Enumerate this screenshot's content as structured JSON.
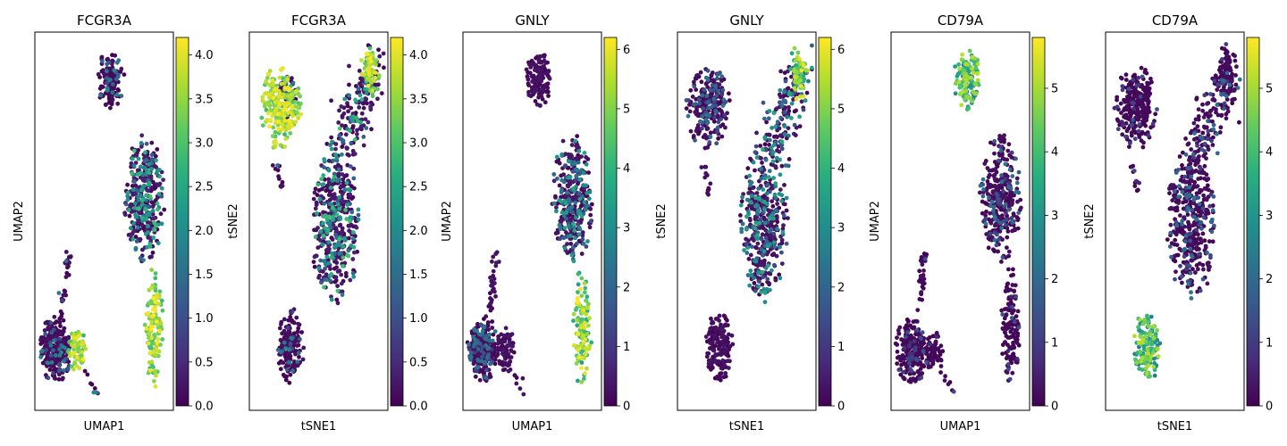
{
  "chart_data": [
    {
      "type": "scatter",
      "title": "FCGR3A",
      "xlabel": "UMAP1",
      "ylabel": "UMAP2",
      "layout": "umap",
      "colorbar_ticks": [
        "0.0",
        "0.5",
        "1.0",
        "1.5",
        "2.0",
        "2.5",
        "3.0",
        "3.5",
        "4.0"
      ],
      "clim": [
        0,
        4.2
      ],
      "hot_clusters": [
        "umap_nk_blob",
        "umap_cd14_tail"
      ]
    },
    {
      "type": "scatter",
      "title": "FCGR3A",
      "xlabel": "tSNE1",
      "ylabel": "tSNE2",
      "layout": "tsne",
      "colorbar_ticks": [
        "0.0",
        "0.5",
        "1.0",
        "1.5",
        "2.0",
        "2.5",
        "3.0",
        "3.5",
        "4.0"
      ],
      "clim": [
        0,
        4.2
      ],
      "hot_clusters": [
        "tsne_topright",
        "tsne_topleft_blob"
      ]
    },
    {
      "type": "scatter",
      "title": "GNLY",
      "xlabel": "UMAP1",
      "ylabel": "UMAP2",
      "layout": "umap",
      "colorbar_ticks": [
        "0",
        "1",
        "2",
        "3",
        "4",
        "5",
        "6"
      ],
      "clim": [
        0,
        6.2
      ],
      "hot_clusters": [
        "umap_cd14_tail"
      ]
    },
    {
      "type": "scatter",
      "title": "GNLY",
      "xlabel": "tSNE1",
      "ylabel": "tSNE2",
      "layout": "tsne",
      "colorbar_ticks": [
        "0",
        "1",
        "2",
        "3",
        "4",
        "5",
        "6"
      ],
      "clim": [
        0,
        6.2
      ],
      "hot_clusters": [
        "tsne_topright"
      ]
    },
    {
      "type": "scatter",
      "title": "CD79A",
      "xlabel": "UMAP1",
      "ylabel": "UMAP2",
      "layout": "umap",
      "colorbar_ticks": [
        "0",
        "1",
        "2",
        "3",
        "4",
        "5"
      ],
      "clim": [
        0,
        5.8
      ],
      "hot_clusters": [
        "umap_top_blob"
      ]
    },
    {
      "type": "scatter",
      "title": "CD79A",
      "xlabel": "tSNE1",
      "ylabel": "tSNE2",
      "layout": "tsne",
      "colorbar_ticks": [
        "0",
        "1",
        "2",
        "3",
        "4",
        "5"
      ],
      "clim": [
        0,
        5.8
      ],
      "hot_clusters": [
        "tsne_bottom_blob"
      ]
    }
  ],
  "colormap": "viridis",
  "colors": {
    "low": "#440154",
    "mid": "#21918c",
    "high": "#fde725",
    "frame": "#000000"
  }
}
